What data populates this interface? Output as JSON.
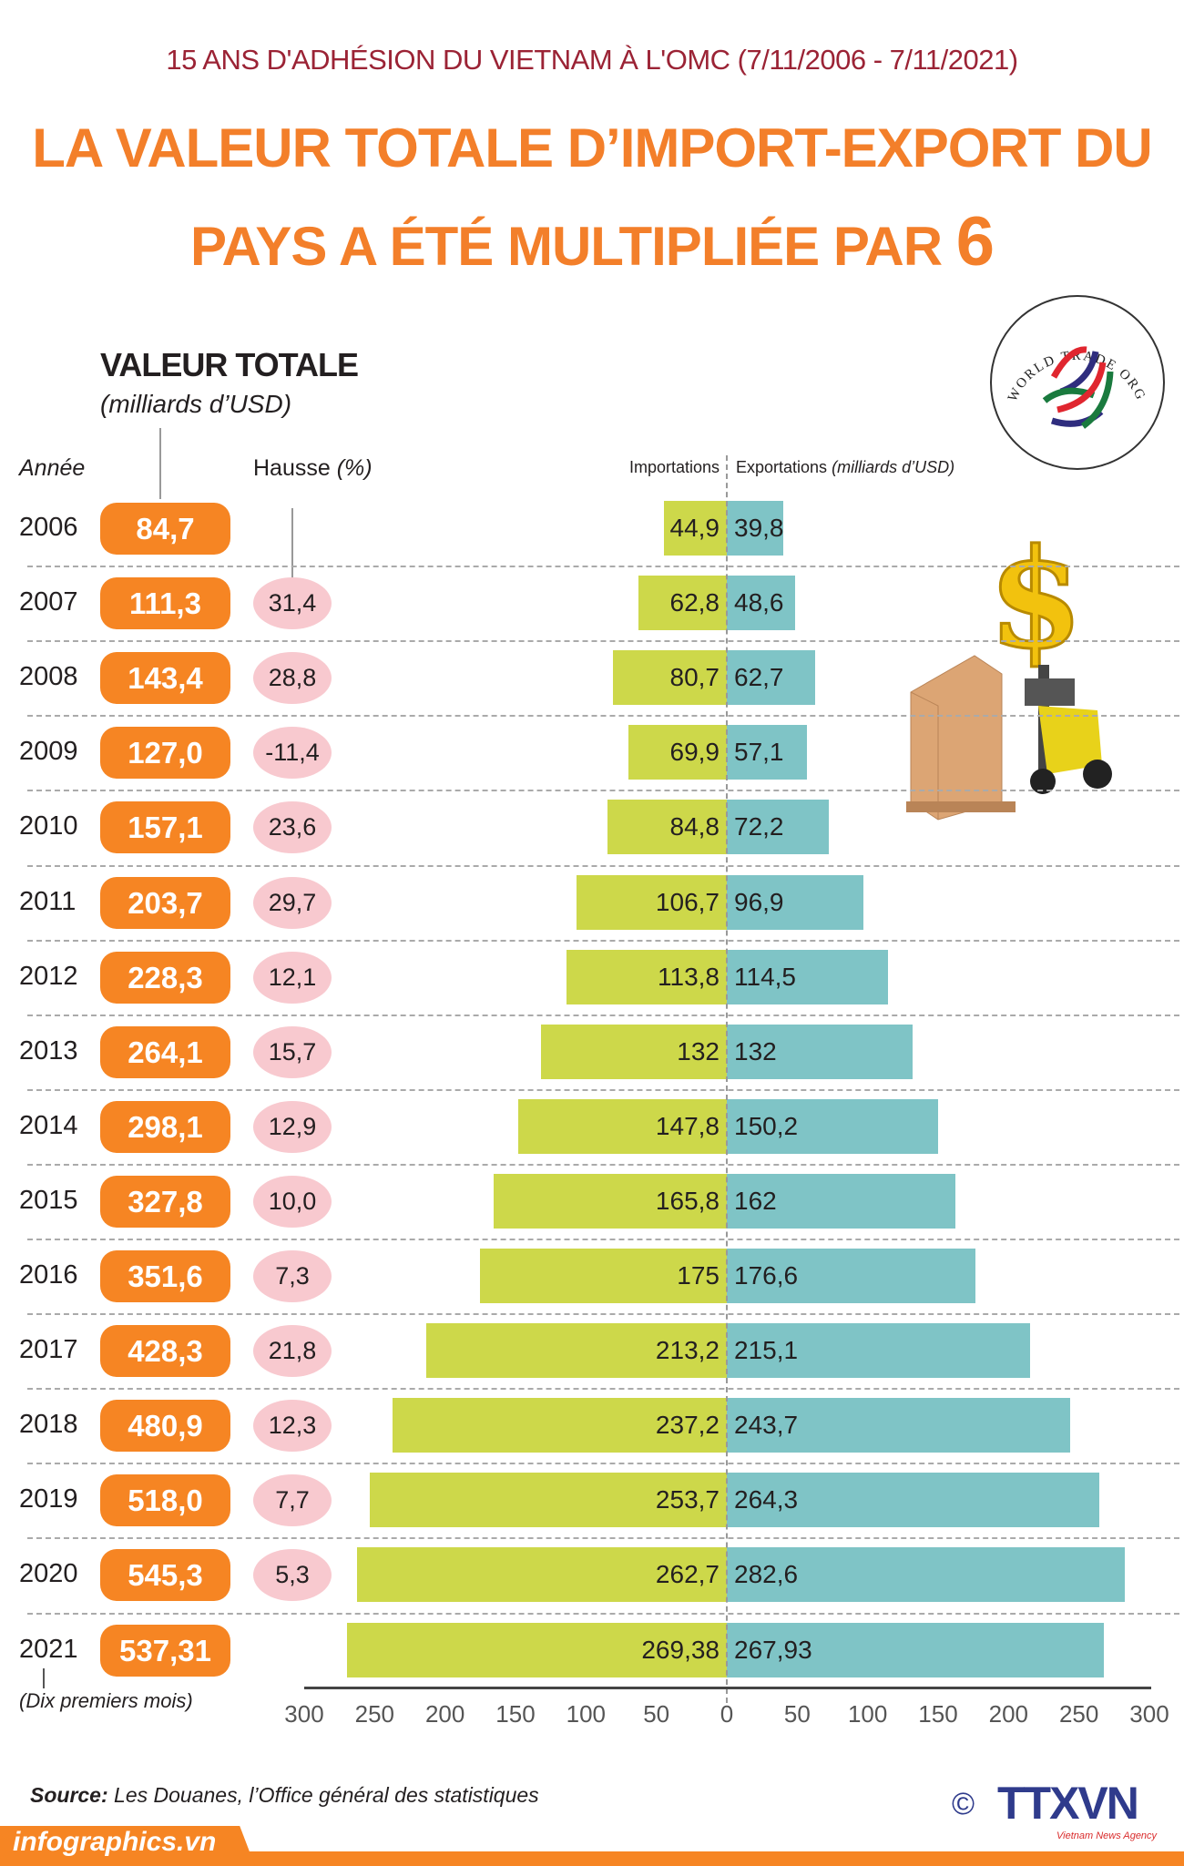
{
  "header": {
    "subtitle": "15 ANS D'ADHÉSION DU VIETNAM À L'OMC  (7/11/2006 - 7/11/2021)",
    "title_line1": "LA VALEUR TOTALE D’IMPORT-EXPORT DU",
    "title_line2": "PAYS A ÉTÉ MULTIPLIÉE PAR ",
    "title_number": "6"
  },
  "logo": {
    "wto_text": "WORLD TRADE ORGANIZATION"
  },
  "colors": {
    "orange": "#f68523",
    "imports": "#cdd84a",
    "exports": "#7fc4c6",
    "hausse": "#f8c9cf",
    "subtitle": "#9b2335"
  },
  "chart_data": {
    "type": "bar",
    "orientation": "horizontal-diverging",
    "total_label": "VALEUR TOTALE",
    "total_unit": "(milliards d’USD)",
    "col_year": "Année",
    "col_hausse": "Hausse",
    "col_hausse_unit": "(%)",
    "imports_label": "Importations",
    "exports_label": "Exportations",
    "exports_unit": "(milliards d’USD)",
    "categories": [
      "2006",
      "2007",
      "2008",
      "2009",
      "2010",
      "2011",
      "2012",
      "2013",
      "2014",
      "2015",
      "2016",
      "2017",
      "2018",
      "2019",
      "2020",
      "2021"
    ],
    "totals": [
      "84,7",
      "111,3",
      "143,4",
      "127,0",
      "157,1",
      "203,7",
      "228,3",
      "264,1",
      "298,1",
      "327,8",
      "351,6",
      "428,3",
      "480,9",
      "518,0",
      "545,3",
      "537,31"
    ],
    "hausse": [
      "",
      "31,4",
      "28,8",
      "-11,4",
      "23,6",
      "29,7",
      "12,1",
      "15,7",
      "12,9",
      "10,0",
      "7,3",
      "21,8",
      "12,3",
      "7,7",
      "5,3",
      ""
    ],
    "series": [
      {
        "name": "Importations",
        "values": [
          44.9,
          62.8,
          80.7,
          69.9,
          84.8,
          106.7,
          113.8,
          132,
          147.8,
          165.8,
          175,
          213.2,
          237.2,
          253.7,
          262.7,
          269.38
        ],
        "labels": [
          "44,9",
          "62,8",
          "80,7",
          "69,9",
          "84,8",
          "106,7",
          "113,8",
          "132",
          "147,8",
          "165,8",
          "175",
          "213,2",
          "237,2",
          "253,7",
          "262,7",
          "269,38"
        ]
      },
      {
        "name": "Exportations",
        "values": [
          39.8,
          48.6,
          62.7,
          57.1,
          72.2,
          96.9,
          114.5,
          132,
          150.2,
          162,
          176.6,
          215.1,
          243.7,
          264.3,
          282.6,
          267.93
        ],
        "labels": [
          "39,8",
          "48,6",
          "62,7",
          "57,1",
          "72,2",
          "96,9",
          "114,5",
          "132",
          "150,2",
          "162",
          "176,6",
          "215,1",
          "243,7",
          "264,3",
          "282,6",
          "267,93"
        ]
      }
    ],
    "note_2021": "(Dix premiers mois)",
    "xlim": [
      -300,
      300
    ],
    "x_ticks": [
      "300",
      "250",
      "200",
      "150",
      "100",
      "50",
      "0",
      "50",
      "100",
      "150",
      "200",
      "250",
      "300"
    ]
  },
  "footer": {
    "source_label": "Source:",
    "source_text": " Les Douanes, l’Office général des statistiques",
    "site": "infographics.vn",
    "agency": "TTXVN",
    "agency_sub": "Vietnam News Agency",
    "copyright": "©"
  }
}
